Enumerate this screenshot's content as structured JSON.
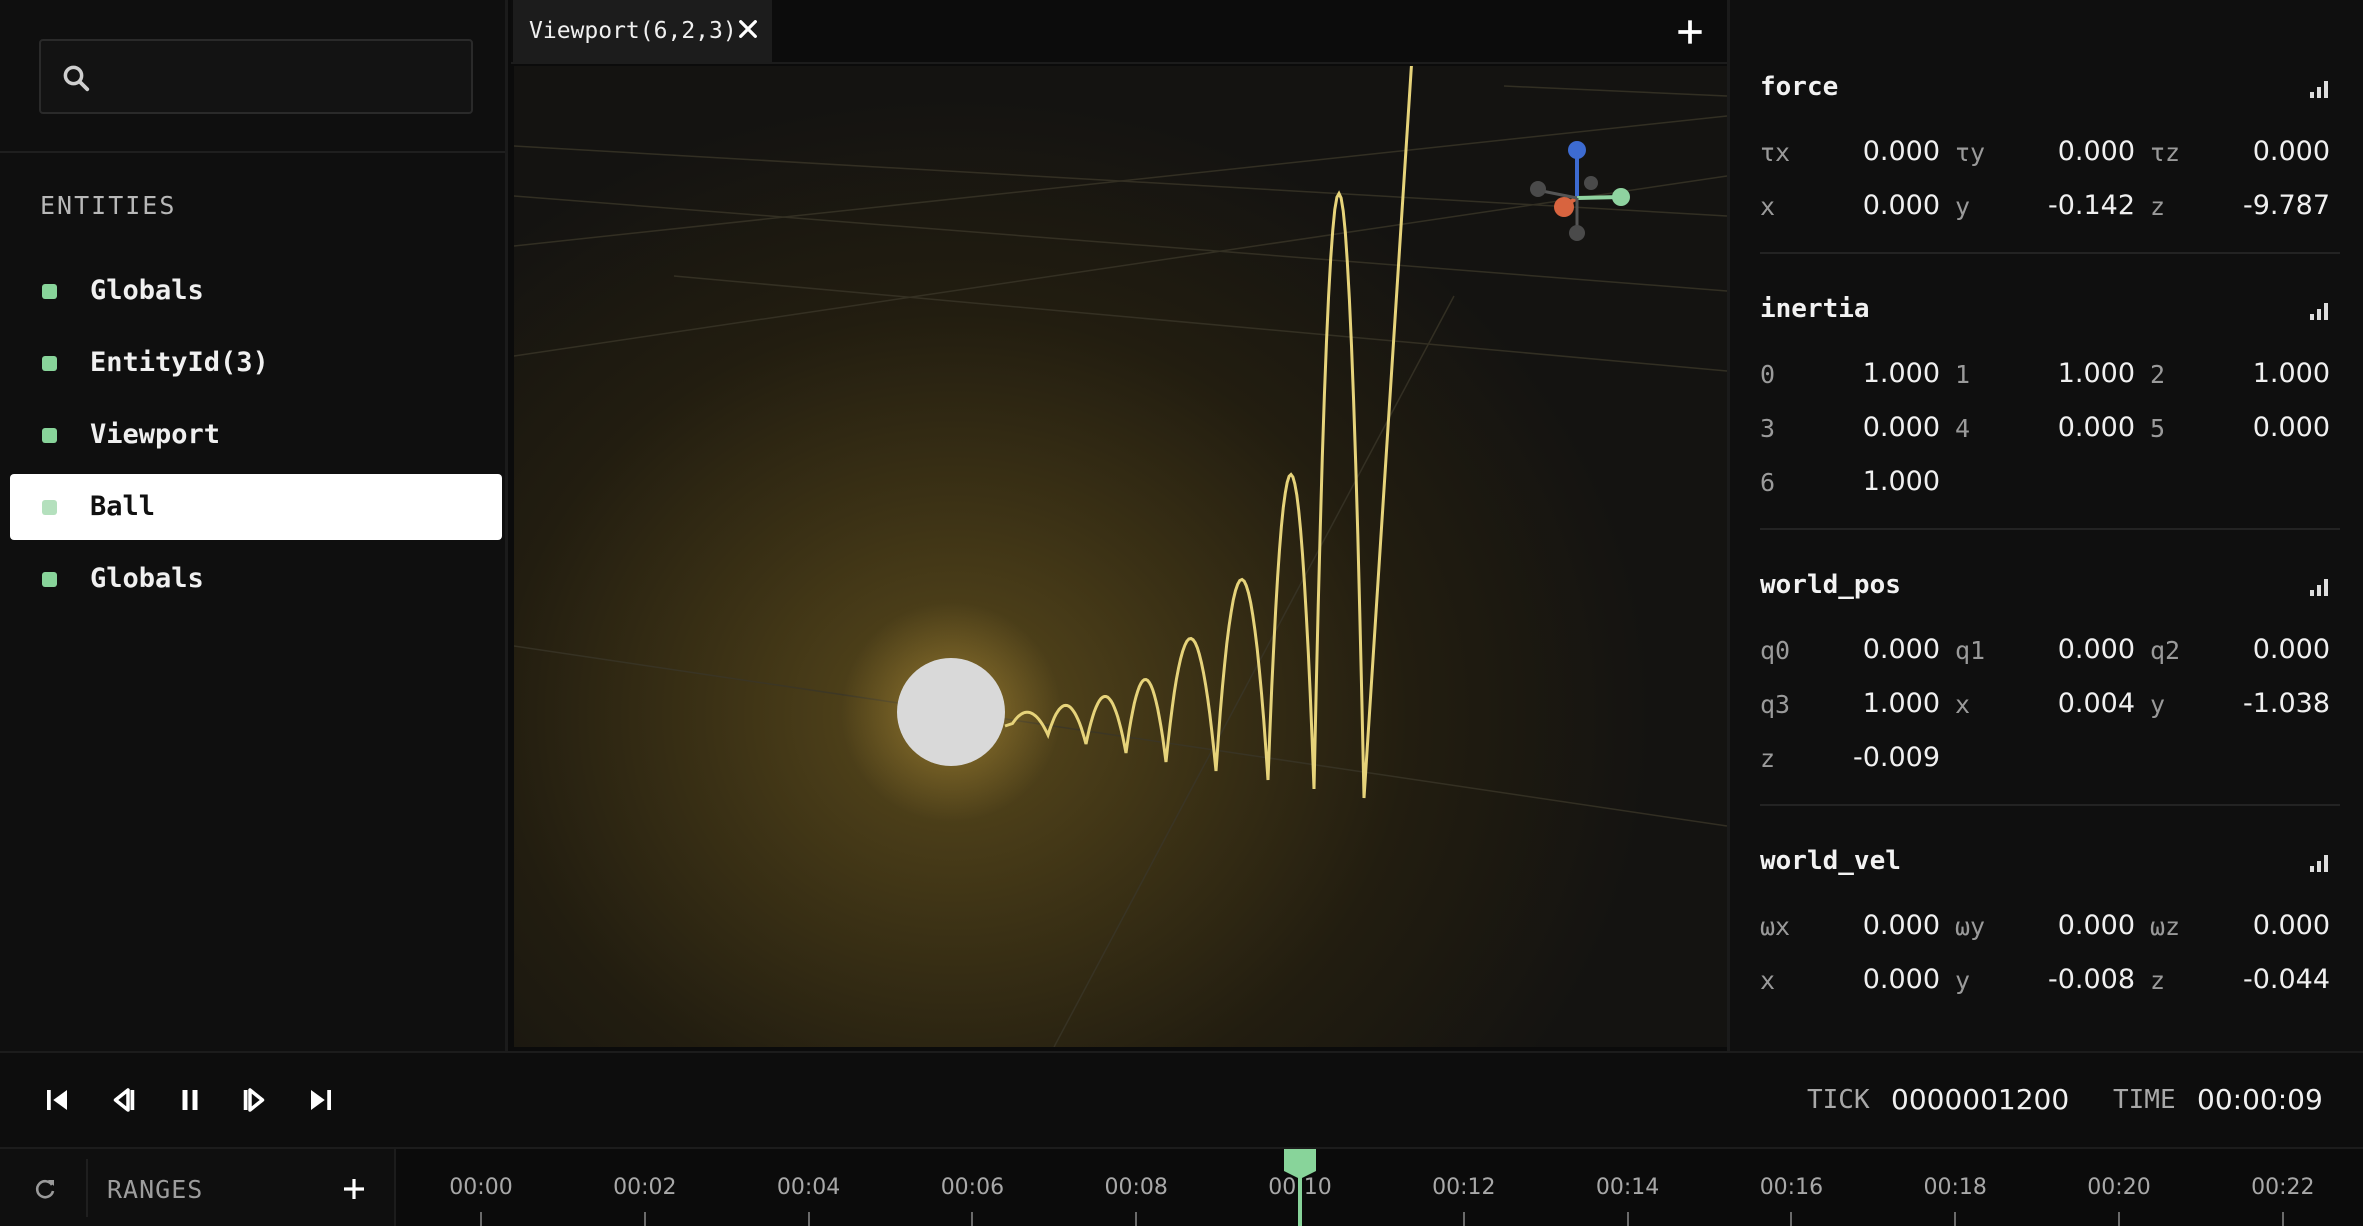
{
  "sidebar": {
    "search_placeholder": "",
    "entities_title": "ENTITIES",
    "entities": [
      {
        "label": "Globals",
        "selected": false
      },
      {
        "label": "EntityId(3)",
        "selected": false
      },
      {
        "label": "Viewport",
        "selected": false
      },
      {
        "label": "Ball",
        "selected": true
      },
      {
        "label": "Globals",
        "selected": false
      }
    ],
    "entity_dot_color": "#88d49a"
  },
  "viewport": {
    "tab_label": "Viewport(6,2,3)",
    "close_icon": "close-icon",
    "add_icon": "plus-icon",
    "trail_color": "#e6d37a",
    "ball_color": "#d9d9d9"
  },
  "inspector": {
    "components": [
      {
        "name": "force",
        "rows": [
          [
            {
              "k": "τx",
              "v": "0.000"
            },
            {
              "k": "τy",
              "v": "0.000"
            },
            {
              "k": "τz",
              "v": "0.000"
            }
          ],
          [
            {
              "k": "x",
              "v": "0.000"
            },
            {
              "k": "y",
              "v": "-0.142"
            },
            {
              "k": "z",
              "v": "-9.787"
            }
          ]
        ]
      },
      {
        "name": "inertia",
        "rows": [
          [
            {
              "k": "0",
              "v": "1.000"
            },
            {
              "k": "1",
              "v": "1.000"
            },
            {
              "k": "2",
              "v": "1.000"
            }
          ],
          [
            {
              "k": "3",
              "v": "0.000"
            },
            {
              "k": "4",
              "v": "0.000"
            },
            {
              "k": "5",
              "v": "0.000"
            }
          ],
          [
            {
              "k": "6",
              "v": "1.000"
            }
          ]
        ]
      },
      {
        "name": "world_pos",
        "rows": [
          [
            {
              "k": "q0",
              "v": "0.000"
            },
            {
              "k": "q1",
              "v": "0.000"
            },
            {
              "k": "q2",
              "v": "0.000"
            }
          ],
          [
            {
              "k": "q3",
              "v": "1.000"
            },
            {
              "k": "x",
              "v": "0.004"
            },
            {
              "k": "y",
              "v": "-1.038"
            }
          ],
          [
            {
              "k": "z",
              "v": "-0.009"
            }
          ]
        ]
      },
      {
        "name": "world_vel",
        "rows": [
          [
            {
              "k": "ωx",
              "v": "0.000"
            },
            {
              "k": "ωy",
              "v": "0.000"
            },
            {
              "k": "ωz",
              "v": "0.000"
            }
          ],
          [
            {
              "k": "x",
              "v": "0.000"
            },
            {
              "k": "y",
              "v": "-0.008"
            },
            {
              "k": "z",
              "v": "-0.044"
            }
          ]
        ]
      }
    ]
  },
  "playback": {
    "buttons": [
      "skip-to-start-icon",
      "step-back-icon",
      "pause-icon",
      "step-forward-icon",
      "skip-to-end-icon"
    ],
    "tick_label": "TICK",
    "tick_value": "0000001200",
    "time_label": "TIME",
    "time_value": "00:00:09"
  },
  "timeline": {
    "ranges_label": "RANGES",
    "ticks": [
      "00:00",
      "00:02",
      "00:04",
      "00:06",
      "00:08",
      "00:10",
      "00:12",
      "00:14",
      "00:16",
      "00:18",
      "00:20",
      "00:22"
    ],
    "playhead_color": "#88d49a"
  }
}
